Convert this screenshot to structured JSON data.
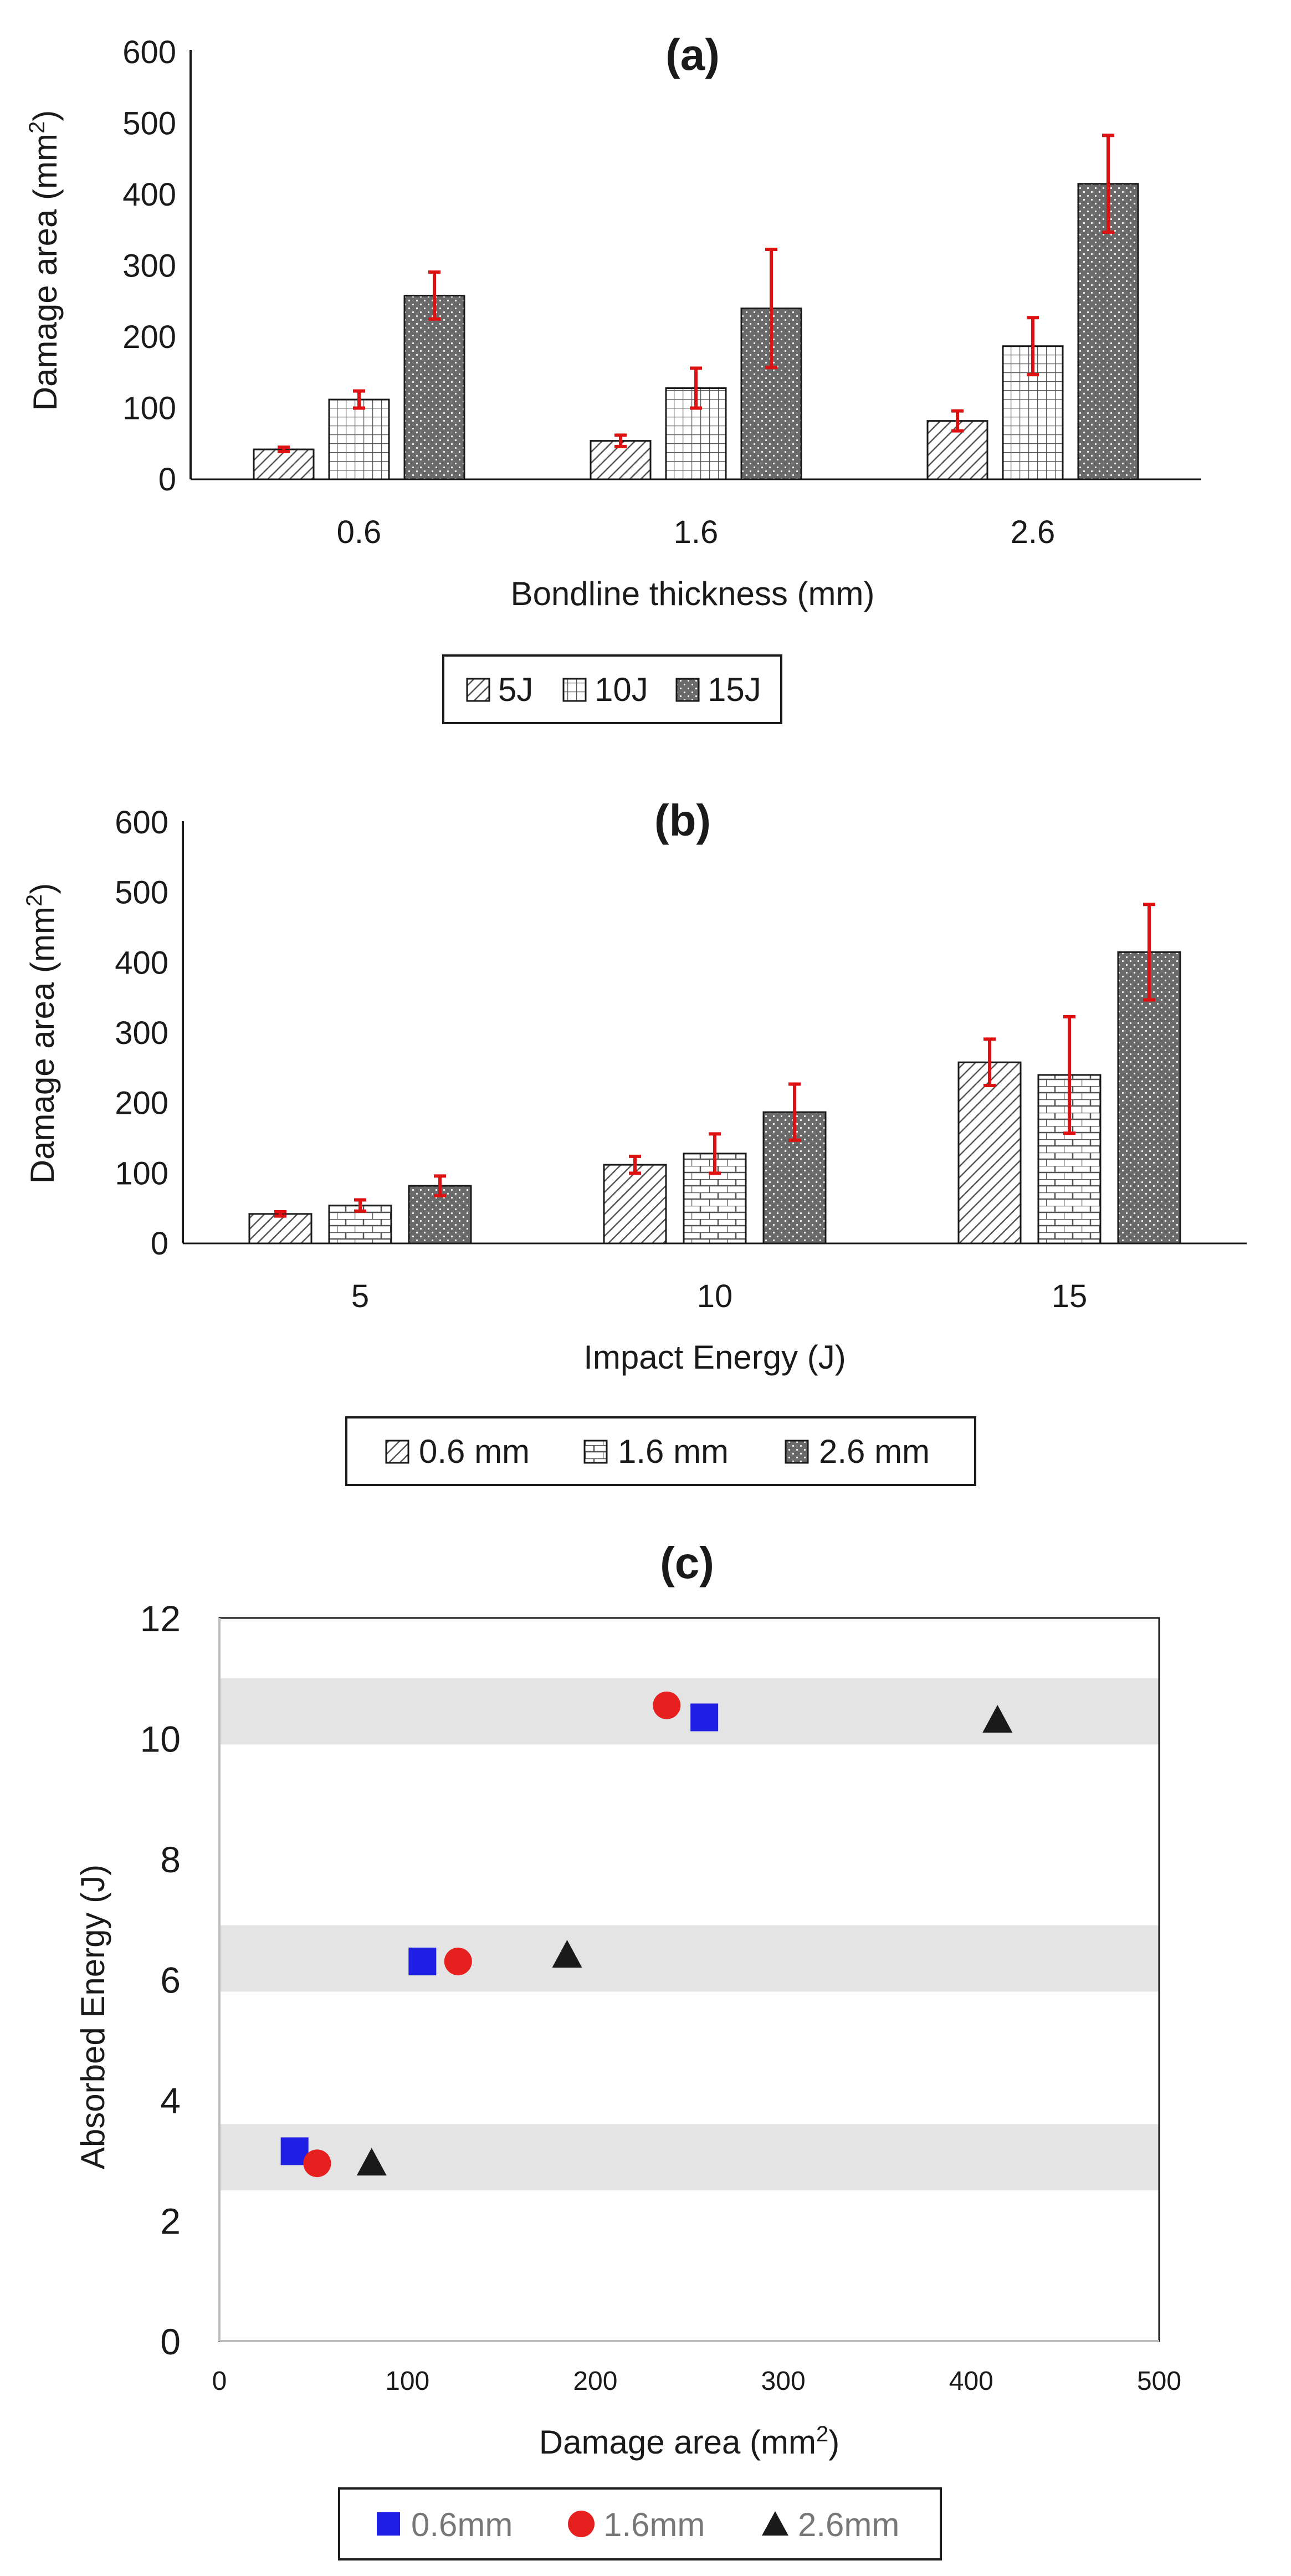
{
  "chart_data": [
    {
      "id": "a",
      "type": "bar",
      "title": "(a)",
      "xlabel": "Bondline thickness (mm)",
      "ylabel": "Damage area (mm",
      "ylabel_sup": "2",
      "ylabel_end": ")",
      "ylim": [
        0,
        600
      ],
      "yticks": [
        "0",
        "100",
        "200",
        "300",
        "400",
        "500",
        "600"
      ],
      "categories": [
        "0.6",
        "1.6",
        "2.6"
      ],
      "series": [
        {
          "name": "5J",
          "pattern": "diag",
          "values": [
            42,
            54,
            82
          ],
          "errors": [
            3,
            8,
            14
          ]
        },
        {
          "name": "10J",
          "pattern": "grid",
          "values": [
            112,
            128,
            187
          ],
          "errors": [
            12,
            28,
            40
          ]
        },
        {
          "name": "15J",
          "pattern": "dots",
          "values": [
            258,
            240,
            415
          ],
          "errors": [
            33,
            83,
            68
          ]
        }
      ],
      "legend_position": "bottom"
    },
    {
      "id": "b",
      "type": "bar",
      "title": "(b)",
      "xlabel": "Impact Energy (J)",
      "ylabel": "Damage area (mm",
      "ylabel_sup": "2",
      "ylabel_end": ")",
      "ylim": [
        0,
        600
      ],
      "yticks": [
        "0",
        "100",
        "200",
        "300",
        "400",
        "500",
        "600"
      ],
      "categories": [
        "5",
        "10",
        "15"
      ],
      "series": [
        {
          "name": "0.6 mm",
          "pattern": "diag",
          "values": [
            42,
            112,
            258
          ],
          "errors": [
            3,
            12,
            33
          ]
        },
        {
          "name": "1.6 mm",
          "pattern": "brick",
          "values": [
            54,
            128,
            240
          ],
          "errors": [
            8,
            28,
            83
          ]
        },
        {
          "name": "2.6 mm",
          "pattern": "dots",
          "values": [
            82,
            187,
            415
          ],
          "errors": [
            14,
            40,
            68
          ]
        }
      ],
      "legend_position": "bottom"
    },
    {
      "id": "c",
      "type": "scatter",
      "title": "(c)",
      "xlabel": "Damage area (mm",
      "xlabel_sup": "2",
      "xlabel_end": ")",
      "ylabel": "Absorbed Energy (J)",
      "xlim": [
        0,
        500
      ],
      "ylim": [
        0,
        12
      ],
      "xticks": [
        "0",
        "100",
        "200",
        "300",
        "400",
        "500"
      ],
      "yticks": [
        "0",
        "2",
        "4",
        "6",
        "8",
        "10",
        "12"
      ],
      "bands": [
        [
          2.5,
          3.6
        ],
        [
          5.8,
          6.9
        ],
        [
          9.9,
          11.0
        ]
      ],
      "series": [
        {
          "name": "0.6mm",
          "marker": "square",
          "color": "#1f1fe6",
          "points": [
            [
              40,
              3.15
            ],
            [
              108,
              6.3
            ],
            [
              258,
              10.35
            ]
          ]
        },
        {
          "name": "1.6mm",
          "marker": "circle",
          "color": "#e61f1f",
          "points": [
            [
              52,
              2.95
            ],
            [
              127,
              6.3
            ],
            [
              238,
              10.55
            ]
          ]
        },
        {
          "name": "2.6mm",
          "marker": "triangle",
          "color": "#1a1a1a",
          "points": [
            [
              81,
              2.95
            ],
            [
              185,
              6.4
            ],
            [
              414,
              10.3
            ]
          ]
        }
      ],
      "legend_position": "bottom"
    }
  ],
  "colors": {
    "error_bar": "#dd1111",
    "axis": "#1a1a1a",
    "band": "#e4e4e4"
  }
}
